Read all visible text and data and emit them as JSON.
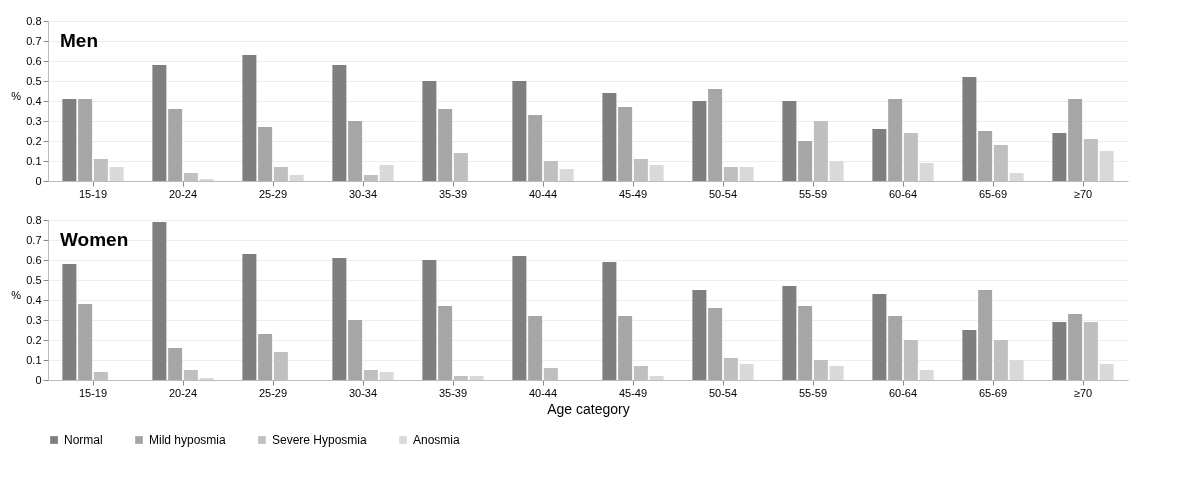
{
  "chart_data": [
    {
      "type": "bar",
      "title": "Men",
      "ylabel": "%",
      "categories": [
        "15-19",
        "20-24",
        "25-29",
        "30-34",
        "35-39",
        "40-44",
        "45-49",
        "50-54",
        "55-59",
        "60-64",
        "65-69",
        "≥70"
      ],
      "ylim": [
        0,
        0.8
      ],
      "yticks": [
        0,
        0.1,
        0.2,
        0.3,
        0.4,
        0.5,
        0.6,
        0.7,
        0.8
      ],
      "grid": "y",
      "series": [
        {
          "color": "#7f7f7f",
          "values": [
            0.41,
            0.58,
            0.63,
            0.58,
            0.5,
            0.5,
            0.44,
            0.4,
            0.4,
            0.26,
            0.52,
            0.24
          ]
        },
        {
          "color": "#a6a6a6",
          "values": [
            0.41,
            0.36,
            0.27,
            0.3,
            0.36,
            0.33,
            0.37,
            0.46,
            0.2,
            0.41,
            0.25,
            0.41
          ]
        },
        {
          "color": "#bfbfbf",
          "values": [
            0.11,
            0.04,
            0.07,
            0.03,
            0.14,
            0.1,
            0.11,
            0.07,
            0.3,
            0.24,
            0.18,
            0.21
          ]
        },
        {
          "color": "#d9d9d9",
          "values": [
            0.07,
            0.01,
            0.03,
            0.08,
            0,
            0.06,
            0.08,
            0.07,
            0.1,
            0.09,
            0.04,
            0.15
          ]
        }
      ]
    },
    {
      "type": "bar",
      "title": "Women",
      "ylabel": "%",
      "xlabel": "Age category",
      "categories": [
        "15-19",
        "20-24",
        "25-29",
        "30-34",
        "35-39",
        "40-44",
        "45-49",
        "50-54",
        "55-59",
        "60-64",
        "65-69",
        "≥70"
      ],
      "ylim": [
        0,
        0.8
      ],
      "yticks": [
        0,
        0.1,
        0.2,
        0.3,
        0.4,
        0.5,
        0.6,
        0.7,
        0.8
      ],
      "grid": "y",
      "legend": "bottom",
      "series": [
        {
          "name": "Normal",
          "color": "#7f7f7f",
          "values": [
            0.58,
            0.79,
            0.63,
            0.61,
            0.6,
            0.62,
            0.59,
            0.45,
            0.47,
            0.43,
            0.25,
            0.29
          ]
        },
        {
          "name": "Mild hyposmia",
          "color": "#a6a6a6",
          "values": [
            0.38,
            0.16,
            0.23,
            0.3,
            0.37,
            0.32,
            0.32,
            0.36,
            0.37,
            0.32,
            0.45,
            0.33
          ]
        },
        {
          "name": "Severe Hyposmia",
          "color": "#bfbfbf",
          "values": [
            0.04,
            0.05,
            0.14,
            0.05,
            0.02,
            0.06,
            0.07,
            0.11,
            0.1,
            0.2,
            0.2,
            0.29
          ]
        },
        {
          "name": "Anosmia",
          "color": "#d9d9d9",
          "values": [
            0,
            0.01,
            0,
            0.04,
            0.02,
            0,
            0.02,
            0.08,
            0.07,
            0.05,
            0.1,
            0.08
          ]
        }
      ]
    }
  ]
}
